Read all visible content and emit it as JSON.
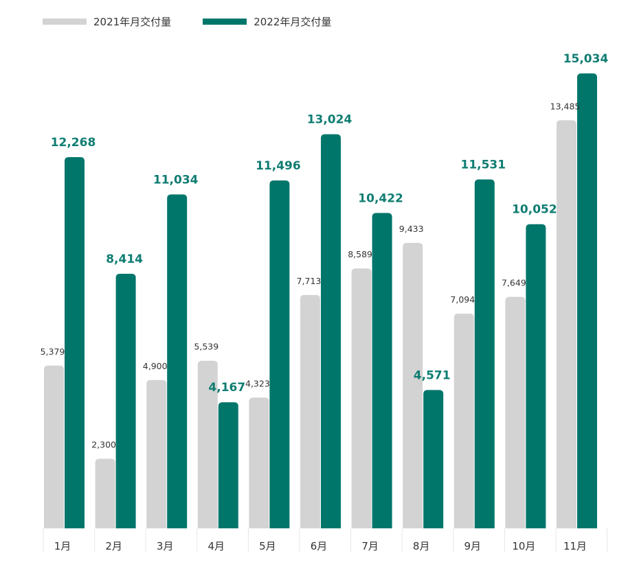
{
  "chart_data": {
    "type": "bar",
    "categories": [
      "1月",
      "2月",
      "3月",
      "4月",
      "5月",
      "6月",
      "7月",
      "8月",
      "9月",
      "10月",
      "11月"
    ],
    "series": [
      {
        "name": "2021年月交付量",
        "color": "#d3d3d3",
        "values": [
          5379,
          2300,
          4900,
          5539,
          4323,
          7713,
          8589,
          9433,
          7094,
          7649,
          13485
        ],
        "labels": [
          "5,379",
          "2,300",
          "4,900",
          "5,539",
          "4,323",
          "7,713",
          "8,589",
          "9,433",
          "7,094",
          "7,649",
          "13,485"
        ]
      },
      {
        "name": "2022年月交付量",
        "color": "#00766b",
        "values": [
          12268,
          8414,
          11034,
          4167,
          11496,
          13024,
          10422,
          4571,
          11531,
          10052,
          15034
        ],
        "labels": [
          "12,268",
          "8,414",
          "11,034",
          "4,167",
          "11,496",
          "13,024",
          "10,422",
          "4,571",
          "11,531",
          "10,052",
          "15,034"
        ]
      }
    ],
    "ylim": [
      0,
      16000
    ],
    "legend_position": "top-left",
    "grid": false
  }
}
